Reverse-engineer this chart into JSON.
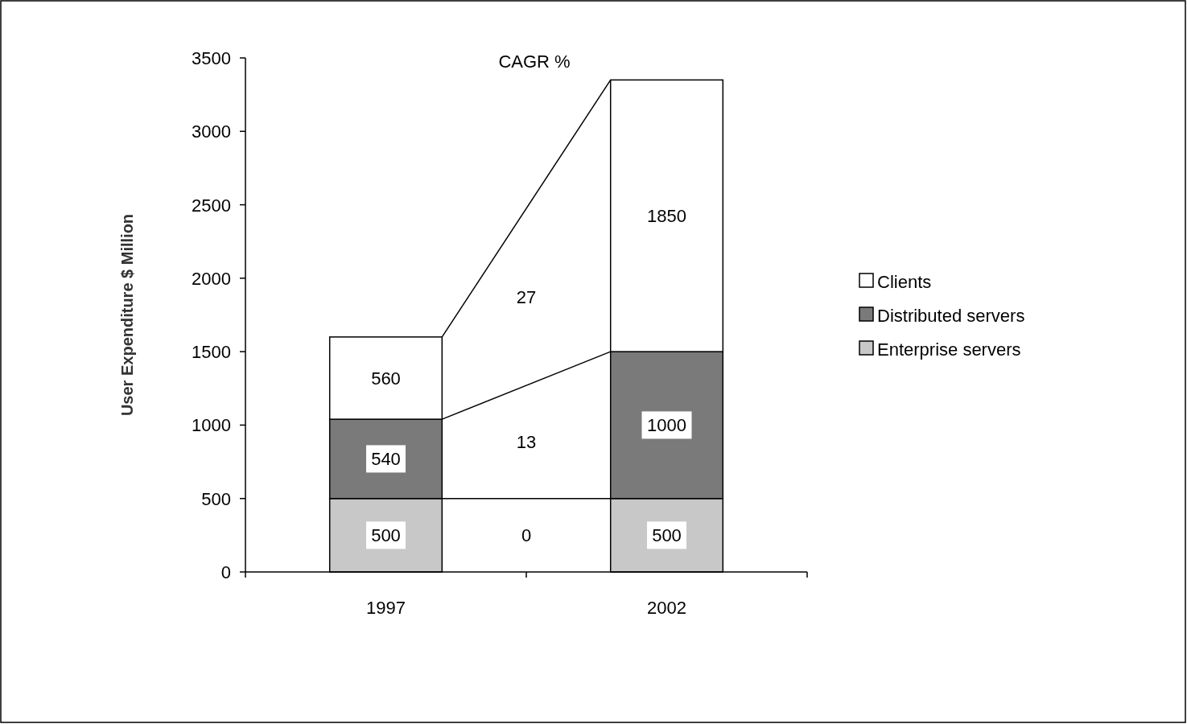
{
  "chart_data": {
    "type": "bar",
    "stacked": true,
    "ylabel": "User Expenditure $ Million",
    "categories": [
      "1997",
      "2002"
    ],
    "series": [
      {
        "name": "Enterprise servers",
        "color": "#c8c8c8",
        "values": [
          500,
          500
        ]
      },
      {
        "name": "Distributed servers",
        "color": "#7a7a7a",
        "values": [
          540,
          1000
        ]
      },
      {
        "name": "Clients",
        "color": "#ffffff",
        "values": [
          560,
          1850
        ]
      }
    ],
    "ylim": [
      0,
      3500
    ],
    "yticks": [
      0,
      500,
      1000,
      1500,
      2000,
      2500,
      3000,
      3500
    ],
    "legend": "right",
    "data_labels": true,
    "annotations": [
      "CAGR %",
      "27",
      "13",
      "0"
    ]
  }
}
